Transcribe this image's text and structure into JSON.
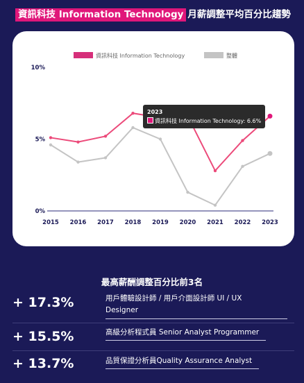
{
  "header": {
    "tag": "資訊科技 Information Technology",
    "rest": "月薪調整平均百分比趨勢"
  },
  "chart_data": {
    "type": "line",
    "x": [
      "2015",
      "2016",
      "2017",
      "2018",
      "2019",
      "2020",
      "2021",
      "2022",
      "2023"
    ],
    "series": [
      {
        "name": "資訊科技 Information Technology",
        "color": "#ec4a7a",
        "values": [
          5.1,
          4.8,
          5.2,
          6.8,
          6.5,
          6.6,
          2.8,
          4.9,
          6.6
        ]
      },
      {
        "name": "整體",
        "color": "#c4c4c4",
        "values": [
          4.6,
          3.4,
          3.7,
          5.8,
          5.0,
          1.3,
          0.4,
          3.1,
          4.0
        ]
      }
    ],
    "y_ticks": [
      "0%",
      "5%",
      "10%"
    ],
    "ylim": [
      0,
      10
    ],
    "grid": false,
    "legend": "top",
    "tooltip": {
      "title": "2023",
      "label": "資訊科技 Information Technology: 6.6%"
    }
  },
  "ranking": {
    "title": "最高薪酬調整百分比前3名",
    "items": [
      {
        "pct": "+ 17.3%",
        "job_line1": "用戶體驗設計師 / 用戶介面設計師 UI / UX",
        "job_line2": "Designer"
      },
      {
        "pct": "+ 15.5%",
        "job_line1": "高級分析程式員 Senior Analyst Programmer",
        "job_line2": ""
      },
      {
        "pct": "+ 13.7%",
        "job_line1": "品質保證分析員Quality Assurance Analyst",
        "job_line2": ""
      }
    ]
  }
}
